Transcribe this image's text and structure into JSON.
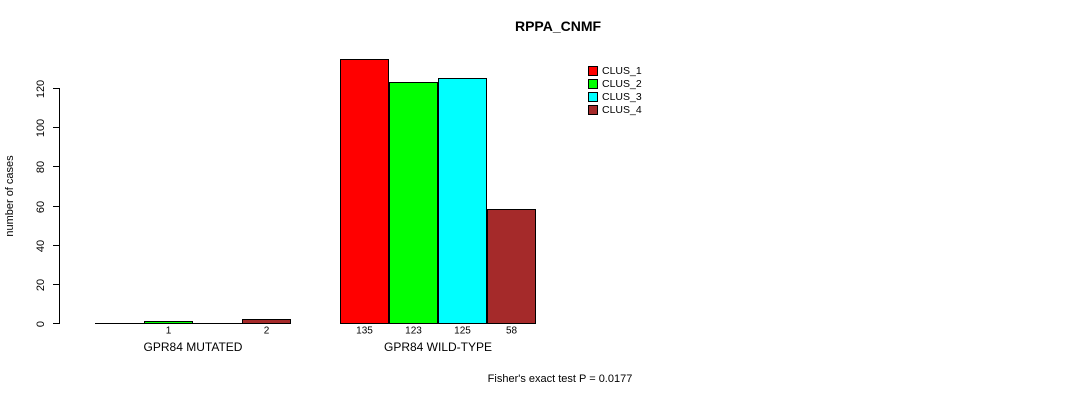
{
  "chart_data": {
    "type": "bar",
    "title": "RPPA_CNMF",
    "xlabel": "",
    "ylabel": "number of cases",
    "annotation": "Fisher's exact test P = 0.0177",
    "categories": [
      "GPR84 MUTATED",
      "GPR84 WILD-TYPE"
    ],
    "series": [
      {
        "name": "CLUS_1",
        "color": "#FF0000",
        "values": [
          0,
          135
        ]
      },
      {
        "name": "CLUS_2",
        "color": "#00FF00",
        "values": [
          1,
          123
        ]
      },
      {
        "name": "CLUS_3",
        "color": "#00FFFF",
        "values": [
          0,
          125
        ]
      },
      {
        "name": "CLUS_4",
        "color": "#A52A2A",
        "values": [
          2,
          58
        ]
      }
    ],
    "bar_value_labels": [
      [
        "",
        "1",
        "",
        "2"
      ],
      [
        "135",
        "123",
        "125",
        "58"
      ]
    ],
    "yticks": [
      0,
      20,
      40,
      60,
      80,
      100,
      120
    ],
    "ylim": [
      0,
      138
    ],
    "grid": false,
    "legend": {
      "position": "top-right",
      "entries": [
        "CLUS_1",
        "CLUS_2",
        "CLUS_3",
        "CLUS_4"
      ]
    }
  }
}
